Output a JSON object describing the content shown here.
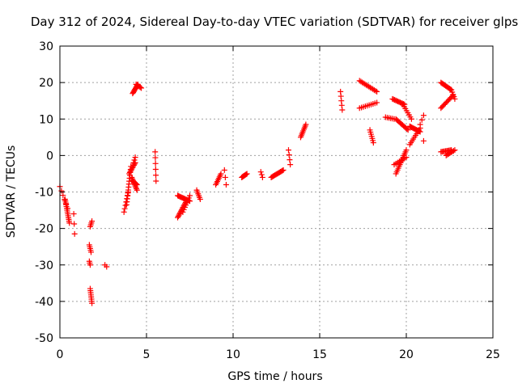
{
  "chart_data": {
    "type": "scatter",
    "title": "Day 312 of 2024, Sidereal Day-to-day VTEC variation (SDTVAR) for receiver glps",
    "xlabel": "GPS time / hours",
    "ylabel": "SDTVAR / TECUs",
    "xlim": [
      0,
      25
    ],
    "ylim": [
      -50,
      30
    ],
    "xticks": [
      0,
      5,
      10,
      15,
      20,
      25
    ],
    "yticks": [
      -50,
      -40,
      -30,
      -20,
      -10,
      0,
      10,
      20,
      30
    ],
    "grid": true,
    "marker": "plus",
    "color": "#ff0000",
    "tracks": [
      {
        "x0": 0.0,
        "x1": 0.45,
        "y0": -8.5,
        "y1": -14.5,
        "n": 6
      },
      {
        "x0": 0.3,
        "x1": 0.55,
        "y0": -12.0,
        "y1": -18.5,
        "n": 14
      },
      {
        "x0": 0.8,
        "x1": 0.85,
        "y0": -16.0,
        "y1": -21.5,
        "n": 3
      },
      {
        "x0": 1.75,
        "x1": 1.85,
        "y0": -19.5,
        "y1": -18.0,
        "n": 4
      },
      {
        "x0": 1.7,
        "x1": 1.8,
        "y0": -24.5,
        "y1": -26.5,
        "n": 5
      },
      {
        "x0": 1.7,
        "x1": 1.75,
        "y0": -29.0,
        "y1": -30.0,
        "n": 3
      },
      {
        "x0": 1.75,
        "x1": 1.85,
        "y0": -36.5,
        "y1": -40.5,
        "n": 8
      },
      {
        "x0": 2.6,
        "x1": 2.7,
        "y0": -30.0,
        "y1": -30.5,
        "n": 2
      },
      {
        "x0": 3.7,
        "x1": 3.95,
        "y0": -15.5,
        "y1": -10.0,
        "n": 7
      },
      {
        "x0": 3.85,
        "x1": 4.1,
        "y0": -13.5,
        "y1": -3.0,
        "n": 14
      },
      {
        "x0": 4.0,
        "x1": 4.35,
        "y0": -5.0,
        "y1": -2.0,
        "n": 10
      },
      {
        "x0": 4.15,
        "x1": 4.45,
        "y0": -6.0,
        "y1": -9.5,
        "n": 10
      },
      {
        "x0": 4.2,
        "x1": 4.45,
        "y0": -7.0,
        "y1": -8.0,
        "n": 8
      },
      {
        "x0": 4.25,
        "x1": 4.35,
        "y0": -2.0,
        "y1": -0.5,
        "n": 3
      },
      {
        "x0": 4.2,
        "x1": 4.5,
        "y0": 17.0,
        "y1": 19.5,
        "n": 10
      },
      {
        "x0": 4.4,
        "x1": 4.7,
        "y0": 19.5,
        "y1": 18.5,
        "n": 6
      },
      {
        "x0": 5.5,
        "x1": 5.55,
        "y0": 1.0,
        "y1": -7.0,
        "n": 6
      },
      {
        "x0": 6.8,
        "x1": 7.5,
        "y0": -11.0,
        "y1": -12.5,
        "n": 14
      },
      {
        "x0": 6.8,
        "x1": 7.3,
        "y0": -17.0,
        "y1": -12.5,
        "n": 14
      },
      {
        "x0": 7.1,
        "x1": 7.5,
        "y0": -15.5,
        "y1": -11.0,
        "n": 8
      },
      {
        "x0": 7.9,
        "x1": 8.1,
        "y0": -9.5,
        "y1": -12.0,
        "n": 6
      },
      {
        "x0": 9.0,
        "x1": 9.3,
        "y0": -8.0,
        "y1": -5.0,
        "n": 8
      },
      {
        "x0": 9.5,
        "x1": 9.6,
        "y0": -4.0,
        "y1": -8.0,
        "n": 3
      },
      {
        "x0": 10.5,
        "x1": 10.8,
        "y0": -6.0,
        "y1": -5.0,
        "n": 8
      },
      {
        "x0": 11.6,
        "x1": 11.7,
        "y0": -4.5,
        "y1": -6.0,
        "n": 3
      },
      {
        "x0": 12.2,
        "x1": 12.9,
        "y0": -6.0,
        "y1": -4.0,
        "n": 14
      },
      {
        "x0": 13.2,
        "x1": 13.3,
        "y0": 1.5,
        "y1": -2.5,
        "n": 4
      },
      {
        "x0": 13.9,
        "x1": 14.2,
        "y0": 5.0,
        "y1": 8.5,
        "n": 9
      },
      {
        "x0": 16.2,
        "x1": 16.3,
        "y0": 17.5,
        "y1": 12.5,
        "n": 5
      },
      {
        "x0": 17.3,
        "x1": 18.3,
        "y0": 20.5,
        "y1": 17.5,
        "n": 14
      },
      {
        "x0": 17.3,
        "x1": 18.3,
        "y0": 13.0,
        "y1": 14.5,
        "n": 10
      },
      {
        "x0": 17.9,
        "x1": 18.1,
        "y0": 7.0,
        "y1": 3.5,
        "n": 7
      },
      {
        "x0": 18.8,
        "x1": 19.3,
        "y0": 10.5,
        "y1": 10.0,
        "n": 6
      },
      {
        "x0": 19.2,
        "x1": 19.9,
        "y0": 15.5,
        "y1": 14.0,
        "n": 12
      },
      {
        "x0": 19.4,
        "x1": 20.1,
        "y0": 10.0,
        "y1": 7.0,
        "n": 12
      },
      {
        "x0": 19.3,
        "x1": 20.0,
        "y0": -2.5,
        "y1": -0.5,
        "n": 8
      },
      {
        "x0": 19.4,
        "x1": 20.0,
        "y0": -5.0,
        "y1": 1.5,
        "n": 14
      },
      {
        "x0": 19.8,
        "x1": 20.3,
        "y0": 14.0,
        "y1": 10.0,
        "n": 8
      },
      {
        "x0": 20.2,
        "x1": 20.8,
        "y0": 8.0,
        "y1": 6.5,
        "n": 12
      },
      {
        "x0": 20.2,
        "x1": 20.8,
        "y0": 3.0,
        "y1": 7.5,
        "n": 10
      },
      {
        "x0": 20.8,
        "x1": 21.0,
        "y0": 8.5,
        "y1": 11.0,
        "n": 3
      },
      {
        "x0": 21.0,
        "x1": 21.0,
        "y0": 4.0,
        "y1": 4.0,
        "n": 1
      },
      {
        "x0": 22.0,
        "x1": 22.6,
        "y0": 20.0,
        "y1": 18.0,
        "n": 12
      },
      {
        "x0": 22.6,
        "x1": 22.8,
        "y0": 18.0,
        "y1": 15.5,
        "n": 5
      },
      {
        "x0": 22.0,
        "x1": 22.7,
        "y0": 13.0,
        "y1": 16.5,
        "n": 12
      },
      {
        "x0": 22.0,
        "x1": 22.6,
        "y0": 1.0,
        "y1": 1.5,
        "n": 10
      },
      {
        "x0": 22.3,
        "x1": 22.8,
        "y0": 0.0,
        "y1": 1.5,
        "n": 8
      }
    ]
  }
}
